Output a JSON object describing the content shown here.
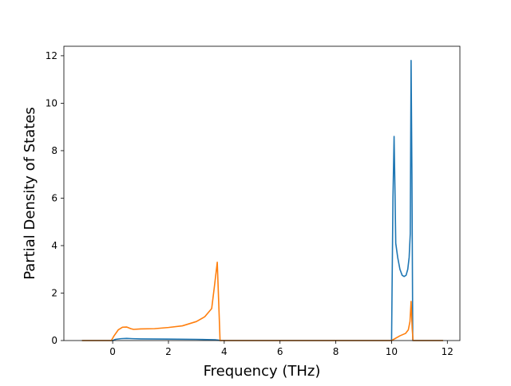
{
  "chart_data": {
    "type": "line",
    "title": "",
    "xlabel": "Frequency (THz)",
    "ylabel": "Partial Density of States",
    "xlim": [
      -1.75,
      12.45
    ],
    "ylim": [
      0,
      12.4
    ],
    "grid": false,
    "legend": "none",
    "xticks": [
      0,
      2,
      4,
      6,
      8,
      10,
      12
    ],
    "yticks": [
      0,
      2,
      4,
      6,
      8,
      10,
      12
    ],
    "series": [
      {
        "color": "#1f77b4",
        "points": [
          [
            -1.1,
            0
          ],
          [
            0,
            0
          ],
          [
            0.1,
            0.05
          ],
          [
            0.3,
            0.08
          ],
          [
            0.5,
            0.09
          ],
          [
            0.7,
            0.08
          ],
          [
            1.0,
            0.07
          ],
          [
            2.0,
            0.06
          ],
          [
            3.0,
            0.05
          ],
          [
            3.7,
            0.03
          ],
          [
            3.78,
            0.02
          ],
          [
            3.85,
            0
          ],
          [
            10.0,
            0
          ],
          [
            10.05,
            6.0
          ],
          [
            10.09,
            8.6
          ],
          [
            10.12,
            6.5
          ],
          [
            10.15,
            4.1
          ],
          [
            10.22,
            3.5
          ],
          [
            10.3,
            3.0
          ],
          [
            10.38,
            2.75
          ],
          [
            10.45,
            2.7
          ],
          [
            10.52,
            2.75
          ],
          [
            10.58,
            3.0
          ],
          [
            10.63,
            3.5
          ],
          [
            10.67,
            4.5
          ],
          [
            10.7,
            11.8
          ],
          [
            10.73,
            7.0
          ],
          [
            10.76,
            0
          ],
          [
            11.85,
            0
          ]
        ]
      },
      {
        "color": "#ff7f0e",
        "points": [
          [
            -1.1,
            0
          ],
          [
            -0.05,
            0
          ],
          [
            0.05,
            0.2
          ],
          [
            0.2,
            0.45
          ],
          [
            0.35,
            0.56
          ],
          [
            0.5,
            0.57
          ],
          [
            0.65,
            0.5
          ],
          [
            0.75,
            0.47
          ],
          [
            1.0,
            0.49
          ],
          [
            1.5,
            0.5
          ],
          [
            2.0,
            0.55
          ],
          [
            2.5,
            0.62
          ],
          [
            3.0,
            0.8
          ],
          [
            3.3,
            1.0
          ],
          [
            3.55,
            1.35
          ],
          [
            3.65,
            2.3
          ],
          [
            3.75,
            3.3
          ],
          [
            3.82,
            1.0
          ],
          [
            3.85,
            0
          ],
          [
            10.0,
            0
          ],
          [
            10.3,
            0.2
          ],
          [
            10.5,
            0.3
          ],
          [
            10.6,
            0.45
          ],
          [
            10.66,
            0.8
          ],
          [
            10.7,
            1.65
          ],
          [
            10.74,
            0.5
          ],
          [
            10.77,
            0
          ],
          [
            11.85,
            0
          ]
        ]
      }
    ]
  }
}
